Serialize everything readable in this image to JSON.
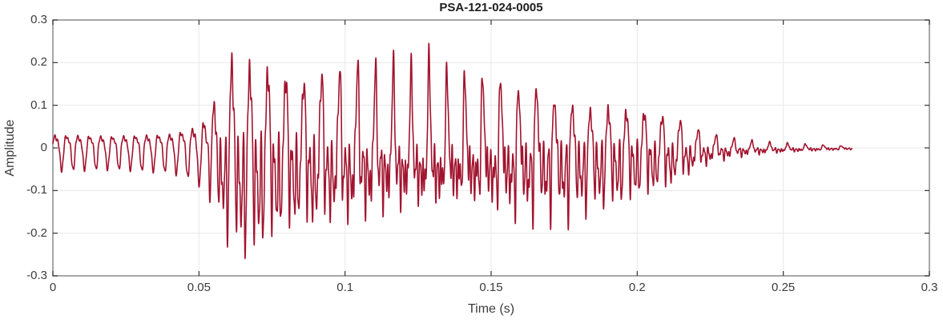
{
  "figure": {
    "background": "#ffffff"
  },
  "chart_data": {
    "type": "line",
    "title": "PSA-121-024-0005",
    "xlabel": "Time (s)",
    "ylabel": "Amplitude",
    "xlim": [
      0,
      0.3
    ],
    "ylim": [
      -0.3,
      0.3
    ],
    "xticks": [
      0,
      0.05,
      0.1,
      0.15,
      0.2,
      0.25,
      0.3
    ],
    "yticks": [
      -0.3,
      -0.2,
      -0.1,
      0,
      0.1,
      0.2,
      0.3
    ],
    "grid": true,
    "legend": "none",
    "colors": {
      "line": "#A2142F",
      "grid": "#E8E8E8",
      "axis_border": "#8A8A8A",
      "tick": "#333333",
      "text": "#3c3c3c",
      "title": "#1f1f1f"
    },
    "line_width": 1.6,
    "signal": {
      "description": "acoustic waveform: low-amplitude quasi-periodic onset (0-0.052 s), strong spiky voiced burst peaking +0.29/-0.235 near 0.06-0.07 s, gradual decay, small ripple tail ending at 0.273 s",
      "t_start": 0,
      "t_end": 0.2735,
      "sample_dt": 5e-05,
      "crossfade": 0.003,
      "segments": [
        {
          "t0": 0.0,
          "t1": 0.052,
          "f0": 255,
          "components": [
            [
              1,
              1.0,
              -1.5708
            ],
            [
              2,
              0.3,
              -0.5
            ],
            [
              4.5,
              0.12,
              0.9
            ]
          ],
          "pos_norm": 1.25,
          "neg_norm": 1.25
        },
        {
          "t0": 0.052,
          "t1": 0.2735,
          "f0": 163,
          "components": [
            [
              1,
              1.0,
              0.0
            ],
            [
              2,
              0.75,
              0.15
            ],
            [
              3,
              0.55,
              0.35
            ],
            [
              4.05,
              0.4,
              0.0
            ],
            [
              6.1,
              0.28,
              0.6
            ],
            [
              9.2,
              0.18,
              0.2
            ]
          ],
          "pos_norm": 3.0,
          "neg_norm": 1.35
        }
      ],
      "envelope": {
        "t": [
          0.0,
          0.02,
          0.04,
          0.048,
          0.052,
          0.055,
          0.058,
          0.061,
          0.064,
          0.067,
          0.07,
          0.074,
          0.078,
          0.082,
          0.086,
          0.09,
          0.094,
          0.098,
          0.102,
          0.106,
          0.11,
          0.114,
          0.118,
          0.122,
          0.126,
          0.13,
          0.134,
          0.138,
          0.142,
          0.146,
          0.15,
          0.155,
          0.16,
          0.165,
          0.17,
          0.175,
          0.18,
          0.185,
          0.19,
          0.195,
          0.2,
          0.205,
          0.21,
          0.214,
          0.218,
          0.222,
          0.226,
          0.232,
          0.238,
          0.245,
          0.252,
          0.26,
          0.268,
          0.273
        ],
        "pos": [
          0.04,
          0.036,
          0.042,
          0.06,
          0.085,
          0.14,
          0.21,
          0.29,
          0.24,
          0.27,
          0.23,
          0.26,
          0.22,
          0.25,
          0.21,
          0.26,
          0.2,
          0.23,
          0.22,
          0.25,
          0.22,
          0.24,
          0.22,
          0.21,
          0.23,
          0.24,
          0.2,
          0.21,
          0.19,
          0.2,
          0.19,
          0.2,
          0.17,
          0.19,
          0.15,
          0.14,
          0.13,
          0.12,
          0.13,
          0.12,
          0.125,
          0.11,
          0.1,
          0.09,
          0.065,
          0.05,
          0.038,
          0.027,
          0.02,
          0.015,
          0.012,
          0.009,
          0.006,
          0.005
        ],
        "neg": [
          0.052,
          0.048,
          0.055,
          0.07,
          0.095,
          0.13,
          0.17,
          0.2,
          0.22,
          0.235,
          0.22,
          0.2,
          0.185,
          0.175,
          0.17,
          0.18,
          0.17,
          0.165,
          0.17,
          0.16,
          0.17,
          0.155,
          0.16,
          0.15,
          0.155,
          0.16,
          0.15,
          0.145,
          0.15,
          0.14,
          0.145,
          0.15,
          0.155,
          0.15,
          0.145,
          0.15,
          0.14,
          0.13,
          0.125,
          0.12,
          0.11,
          0.1,
          0.09,
          0.075,
          0.06,
          0.045,
          0.035,
          0.026,
          0.02,
          0.015,
          0.012,
          0.009,
          0.006,
          0.005
        ]
      }
    }
  }
}
